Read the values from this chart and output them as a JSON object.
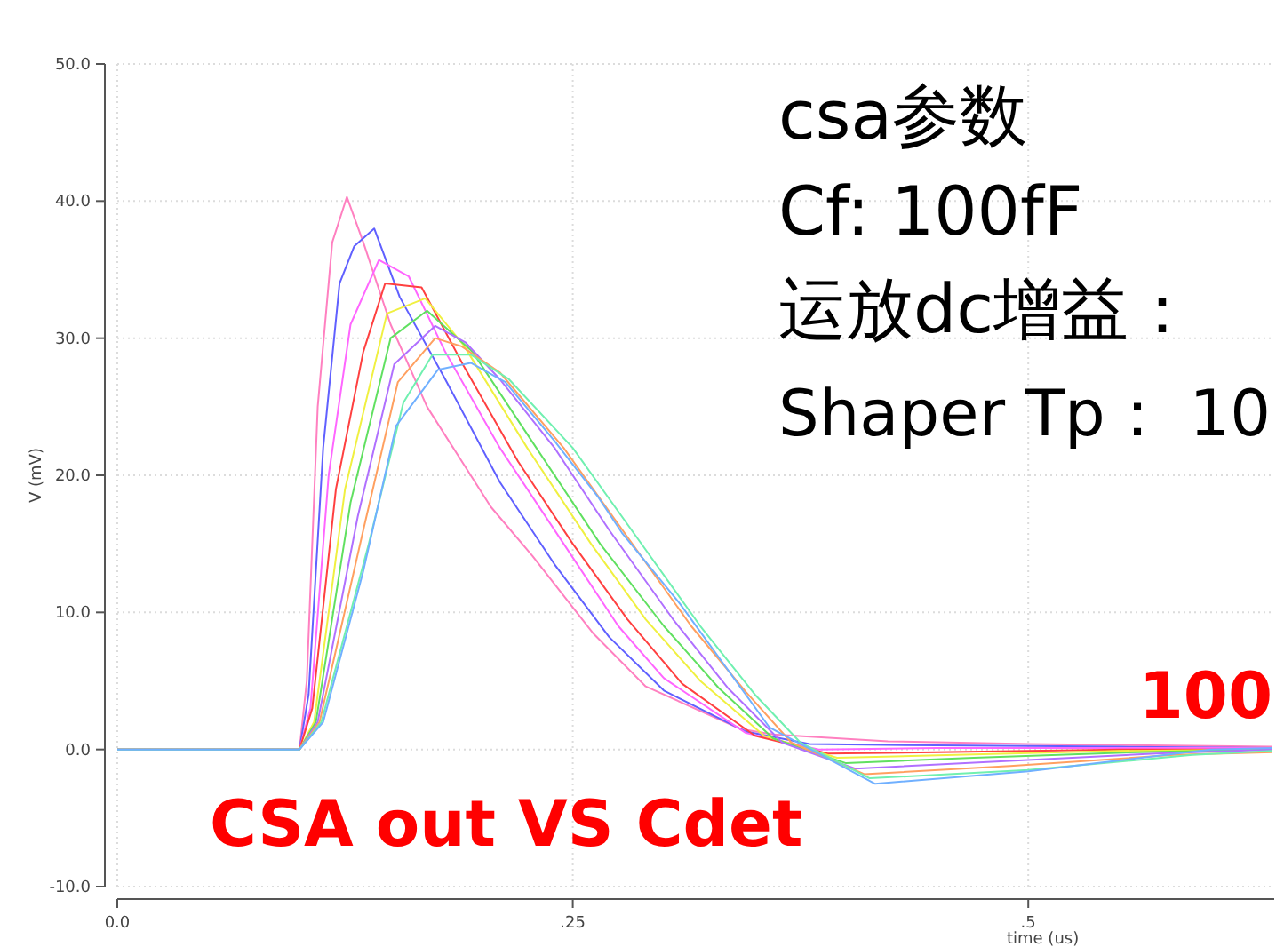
{
  "chart_data": {
    "type": "line",
    "xlabel": "time (us)",
    "ylabel": "V (mV)",
    "annotations": [
      "csa参数",
      "Cf: 100fF",
      "运放dc增益：",
      "Shaper Tp： 10",
      "100",
      "CSA out VS Cdet"
    ],
    "xlim": [
      0,
      0.635
    ],
    "ylim": [
      -10,
      50
    ],
    "xticks": [
      {
        "value": 0,
        "label": "0.0"
      },
      {
        "value": 0.25,
        "label": ".25"
      },
      {
        "value": 0.5,
        "label": ".5"
      }
    ],
    "yticks": [
      {
        "value": -10,
        "label": "-10.0"
      },
      {
        "value": 0,
        "label": "0.0"
      },
      {
        "value": 10,
        "label": "10.0"
      },
      {
        "value": 20,
        "label": "20.0"
      },
      {
        "value": 30,
        "label": "30.0"
      },
      {
        "value": 40,
        "label": "40.0"
      },
      {
        "value": 50,
        "label": "50.0"
      }
    ],
    "grid": true,
    "line_style": "solid",
    "marker": "none",
    "series": [
      {
        "color": "#ff80c0",
        "x": [
          0,
          0.1,
          0.104,
          0.11,
          0.118,
          0.126,
          0.135,
          0.15,
          0.17,
          0.205,
          0.228,
          0.261,
          0.29,
          0.342,
          0.36,
          0.423,
          0.5,
          0.634
        ],
        "values": [
          0,
          0,
          5,
          25,
          37,
          40.3,
          37,
          31,
          25,
          17.7,
          14.1,
          8.5,
          4.6,
          1.5,
          1.1,
          0.6,
          0.4,
          0.2
        ]
      },
      {
        "color": "#6060ff",
        "x": [
          0,
          0.1,
          0.105,
          0.113,
          0.122,
          0.13,
          0.141,
          0.155,
          0.18,
          0.21,
          0.24,
          0.27,
          0.3,
          0.345,
          0.38,
          0.45,
          0.55,
          0.634
        ],
        "values": [
          0,
          0,
          4,
          22,
          34,
          36.7,
          38,
          33,
          27,
          19.5,
          13.5,
          8.2,
          4.3,
          1.3,
          0.4,
          0.3,
          0.2,
          0.1
        ]
      },
      {
        "color": "#ff66ff",
        "x": [
          0,
          0.1,
          0.106,
          0.116,
          0.128,
          0.1436,
          0.16,
          0.18,
          0.21,
          0.245,
          0.275,
          0.3,
          0.345,
          0.385,
          0.45,
          0.55,
          0.634
        ],
        "values": [
          0,
          0,
          3,
          20,
          31,
          35.7,
          34.5,
          29,
          22,
          15,
          9,
          5.2,
          1.2,
          0,
          0.1,
          0.1,
          0.1
        ]
      },
      {
        "color": "#ff4040",
        "x": [
          0,
          0.1,
          0.107,
          0.12,
          0.135,
          0.147,
          0.167,
          0.19,
          0.22,
          0.25,
          0.28,
          0.31,
          0.35,
          0.39,
          0.45,
          0.55,
          0.634
        ],
        "values": [
          0,
          0,
          3,
          19,
          29,
          34,
          33.7,
          28,
          21,
          15,
          9.5,
          4.8,
          1,
          -0.3,
          -0.2,
          0,
          0
        ]
      },
      {
        "color": "#f0f040",
        "x": [
          0,
          0.1,
          0.108,
          0.125,
          0.148,
          0.169,
          0.19,
          0.225,
          0.26,
          0.29,
          0.32,
          0.355,
          0.395,
          0.46,
          0.55,
          0.634
        ],
        "values": [
          0,
          0,
          2,
          19,
          31.8,
          32.9,
          29.5,
          22,
          15,
          9.5,
          5,
          1,
          -0.6,
          -0.4,
          -0.1,
          0
        ]
      },
      {
        "color": "#60e060",
        "x": [
          0,
          0.1,
          0.109,
          0.128,
          0.15,
          0.17,
          0.195,
          0.23,
          0.265,
          0.3,
          0.33,
          0.36,
          0.4,
          0.47,
          0.56,
          0.634
        ],
        "values": [
          0,
          0,
          2,
          18,
          30,
          32,
          29,
          22,
          15,
          9,
          4.5,
          0.8,
          -1,
          -0.6,
          -0.2,
          0
        ]
      },
      {
        "color": "#b070ff",
        "x": [
          0,
          0.1,
          0.11,
          0.132,
          0.152,
          0.1745,
          0.191,
          0.21,
          0.24,
          0.27,
          0.305,
          0.335,
          0.365,
          0.405,
          0.48,
          0.57,
          0.634
        ],
        "values": [
          0,
          0,
          2,
          17,
          28.1,
          30.9,
          29.7,
          27,
          22,
          16,
          9.5,
          4.5,
          0.5,
          -1.4,
          -0.9,
          -0.3,
          0
        ]
      },
      {
        "color": "#ffa060",
        "x": [
          0,
          0.1,
          0.111,
          0.135,
          0.154,
          0.1745,
          0.189,
          0.21,
          0.245,
          0.28,
          0.315,
          0.345,
          0.37,
          0.41,
          0.49,
          0.58,
          0.634
        ],
        "values": [
          0,
          0,
          2,
          16,
          26.8,
          30,
          29.4,
          27.5,
          22,
          15.5,
          9,
          4.2,
          0.5,
          -1.8,
          -1.2,
          -0.4,
          -0.2
        ]
      },
      {
        "color": "#70f0b0",
        "x": [
          0,
          0.1,
          0.112,
          0.138,
          0.157,
          0.173,
          0.194,
          0.215,
          0.25,
          0.285,
          0.32,
          0.35,
          0.375,
          0.413,
          0.5,
          0.59,
          0.634
        ],
        "values": [
          0,
          0,
          2,
          15,
          25.3,
          28.8,
          28.8,
          27,
          22,
          15.5,
          9,
          4,
          0.5,
          -2.1,
          -1.5,
          -0.4,
          -0.1
        ]
      },
      {
        "color": "#70b0ff",
        "x": [
          0,
          0.1,
          0.113,
          0.135,
          0.153,
          0.176,
          0.194,
          0.213,
          0.24,
          0.264,
          0.277,
          0.309,
          0.358,
          0.416,
          0.5,
          0.6,
          0.634
        ],
        "values": [
          0,
          0,
          2,
          13,
          23.6,
          27.7,
          28.2,
          26.8,
          22.5,
          18.4,
          15.8,
          10.6,
          1.6,
          -2.5,
          -1.6,
          0,
          0.1
        ]
      }
    ]
  }
}
